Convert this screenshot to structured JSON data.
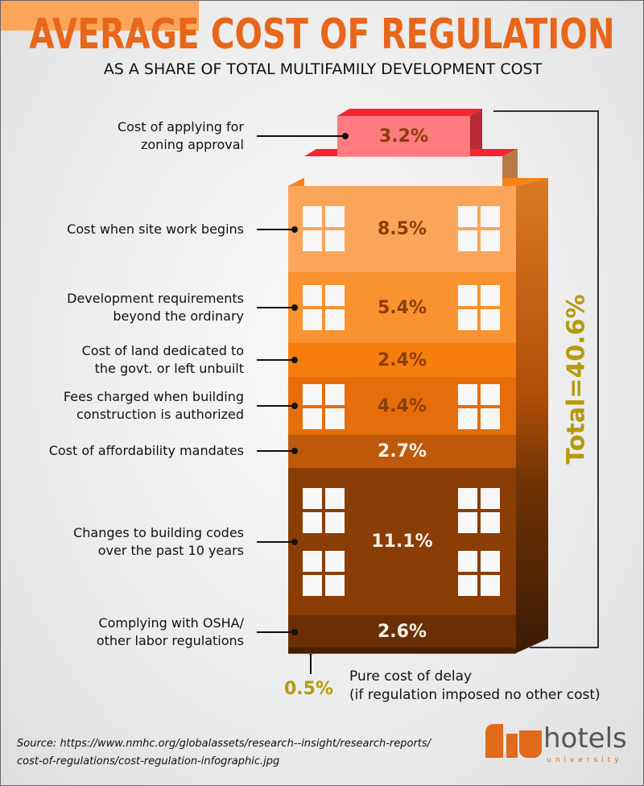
{
  "title": "AVERAGE COST OF REGULATION",
  "subtitle": "AS A SHARE OF TOTAL MULTIFAMILY DEVELOPMENT COST",
  "total_label": "Total=40.6%",
  "chart_data": {
    "type": "bar",
    "title": "AVERAGE COST OF REGULATION",
    "subtitle": "AS A SHARE OF TOTAL MULTIFAMILY DEVELOPMENT COST",
    "stacked": true,
    "unit": "%",
    "total": 40.6,
    "segments": [
      {
        "label": "Cost of applying for zoning approval",
        "value": 3.2,
        "text": "3.2%",
        "color": "#ff7b80"
      },
      {
        "label": "Cost when site work begins",
        "value": 8.5,
        "text": "8.5%",
        "color": "#fba55a"
      },
      {
        "label": "Development requirements beyond the ordinary",
        "value": 5.4,
        "text": "5.4%",
        "color": "#f9922f"
      },
      {
        "label": "Cost of land dedicated to the govt. or left unbuilt",
        "value": 2.4,
        "text": "2.4%",
        "color": "#f77e0e"
      },
      {
        "label": "Fees charged when building construction is authorized",
        "value": 4.4,
        "text": "4.4%",
        "color": "#e56d0b"
      },
      {
        "label": "Cost of affordability mandates",
        "value": 2.7,
        "text": "2.7%",
        "color": "#bd590a"
      },
      {
        "label": "Changes to building codes over the past 10 years",
        "value": 11.1,
        "text": "11.1%",
        "color": "#8a3e06"
      },
      {
        "label": "Complying with OSHA/ other labor regulations",
        "value": 2.6,
        "text": "2.6%",
        "color": "#6b2f05"
      },
      {
        "label": "Pure cost of delay",
        "value": 0.5,
        "text": "0.5%",
        "color": "#4a1f03"
      }
    ]
  },
  "labels": [
    [
      "Cost of applying for",
      "zoning approval"
    ],
    [
      "Cost when site work begins"
    ],
    [
      "Development requirements",
      "beyond the ordinary"
    ],
    [
      "Cost of land dedicated to",
      "the govt. or left unbuilt"
    ],
    [
      "Fees charged when building",
      "construction is authorized"
    ],
    [
      "Cost of affordability mandates"
    ],
    [
      "Changes to building codes",
      "over the past 10 years"
    ],
    [
      "Complying with OSHA/",
      "other labor regulations"
    ]
  ],
  "delay": {
    "value": "0.5%",
    "line1": "Pure cost of delay",
    "line2": "(if regulation imposed no other cost)"
  },
  "source": {
    "line1": "Source: https://www.nmhc.org/globalassets/research--insight/research-reports/",
    "line2": "cost-of-regulations/cost-regulation-infographic.jpg"
  },
  "logo": {
    "main": "hotels",
    "sub": "university"
  }
}
